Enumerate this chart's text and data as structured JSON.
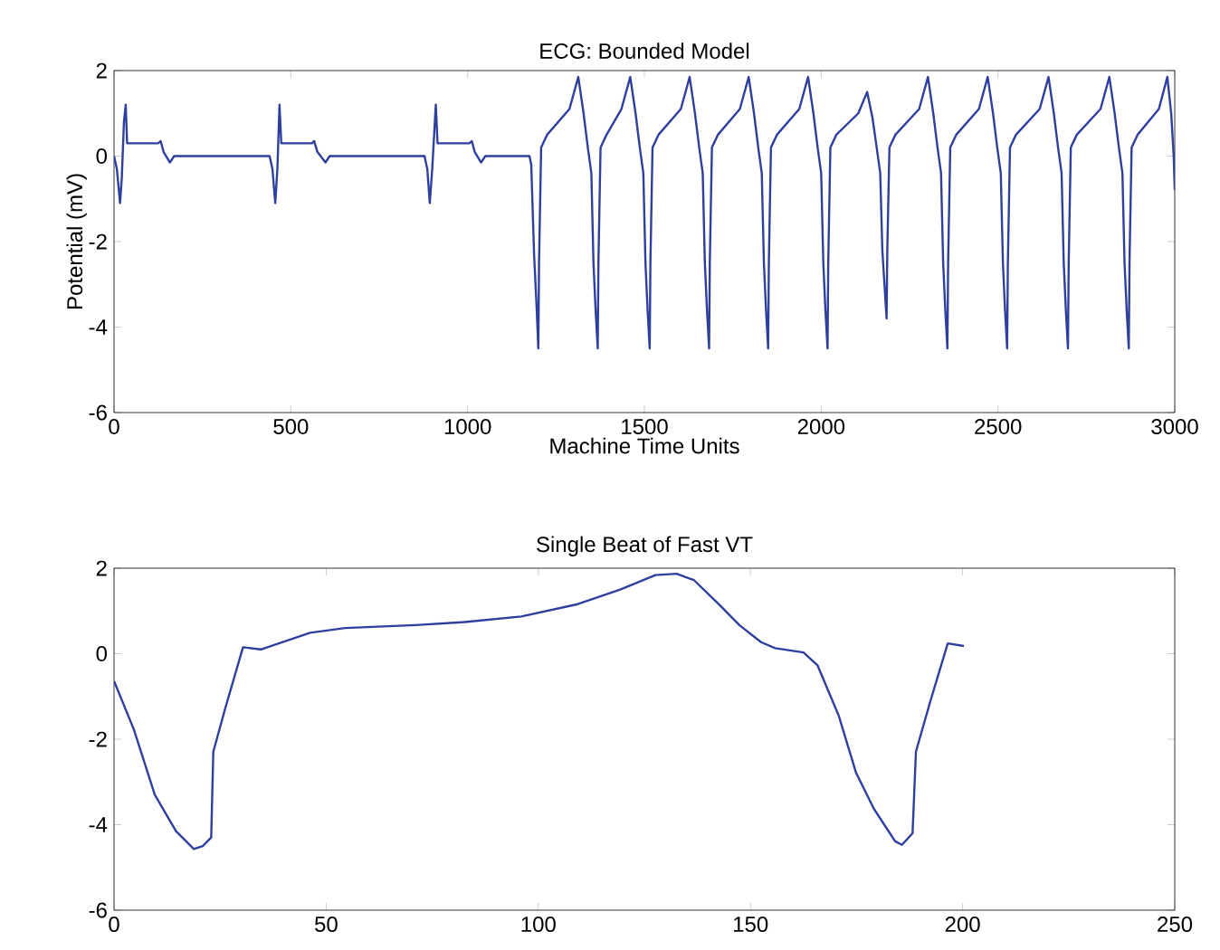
{
  "chart_data": [
    {
      "type": "line",
      "title": "ECG: Bounded Model",
      "xlabel": "Machine Time Units",
      "ylabel": "Potential (mV)",
      "xlim": [
        0,
        3000
      ],
      "ylim": [
        -6,
        2
      ],
      "xticks": [
        0,
        500,
        1000,
        1500,
        2000,
        2500,
        3000
      ],
      "yticks": [
        -6,
        -4,
        -2,
        0,
        2
      ],
      "color": "#2e3f9e",
      "x": [
        0,
        8,
        17,
        22,
        28,
        33,
        37,
        40,
        125,
        132,
        140,
        158,
        170,
        440,
        448,
        456,
        462,
        468,
        473,
        560,
        566,
        575,
        598,
        610,
        878,
        886,
        893,
        900,
        910,
        915,
        1005,
        1012,
        1020,
        1038,
        1050,
        1175,
        1180,
        1188,
        1195,
        1200,
        1202,
        1208,
        1225,
        1288,
        1313,
        1328,
        1340,
        1350,
        1356,
        1362,
        1368,
        1370,
        1376,
        1393,
        1435,
        1460,
        1475,
        1487,
        1497,
        1503,
        1509,
        1515,
        1517,
        1523,
        1540,
        1603,
        1628,
        1643,
        1655,
        1665,
        1671,
        1677,
        1683,
        1685,
        1691,
        1708,
        1770,
        1795,
        1810,
        1822,
        1832,
        1838,
        1844,
        1850,
        1852,
        1858,
        1875,
        1938,
        1963,
        1978,
        1990,
        2000,
        2006,
        2012,
        2018,
        2020,
        2026,
        2043,
        2105,
        2130,
        2145,
        2157,
        2167,
        2173,
        2179,
        2185,
        2187,
        2193,
        2210,
        2277,
        2302,
        2317,
        2329,
        2339,
        2345,
        2351,
        2357,
        2359,
        2365,
        2382,
        2446,
        2471,
        2486,
        2498,
        2508,
        2514,
        2520,
        2526,
        2528,
        2534,
        2551,
        2618,
        2643,
        2658,
        2670,
        2680,
        2686,
        2692,
        2698,
        2700,
        2706,
        2723,
        2790,
        2815,
        2830,
        2842,
        2852,
        2858,
        2864,
        2870,
        2872,
        2878,
        2895,
        2955,
        2979,
        2990,
        2997,
        3000
      ],
      "values": [
        0,
        -0.3,
        -1.1,
        -0.5,
        0.8,
        1.2,
        0.3,
        0.3,
        0.3,
        0.35,
        0.1,
        -0.15,
        0,
        0,
        -0.3,
        -1.1,
        -0.3,
        1.2,
        0.3,
        0.3,
        0.35,
        0.1,
        -0.15,
        0,
        0,
        -0.3,
        -1.1,
        -0.3,
        1.2,
        0.3,
        0.3,
        0.35,
        0.1,
        -0.15,
        0,
        0,
        -0.2,
        -2.3,
        -3.5,
        -4.5,
        -2.5,
        0.2,
        0.5,
        1.1,
        1.85,
        1.0,
        0.2,
        -0.4,
        -2.5,
        -3.6,
        -4.5,
        -2.5,
        0.2,
        0.5,
        1.1,
        1.85,
        1.0,
        0.2,
        -0.4,
        -2.5,
        -3.6,
        -4.5,
        -2.5,
        0.2,
        0.5,
        1.1,
        1.85,
        1.0,
        0.2,
        -0.4,
        -2.5,
        -3.6,
        -4.5,
        -2.5,
        0.2,
        0.5,
        1.1,
        1.85,
        1.0,
        0.2,
        -0.4,
        -2.5,
        -3.6,
        -4.5,
        -2.5,
        0.2,
        0.5,
        1.1,
        1.85,
        1.0,
        0.2,
        -0.4,
        -2.5,
        -3.6,
        -4.5,
        -2.5,
        0.2,
        0.5,
        1.0,
        1.5,
        0.9,
        0.2,
        -0.4,
        -2.2,
        -3.0,
        -3.8,
        -2.2,
        0.2,
        0.5,
        1.1,
        1.85,
        1.0,
        0.2,
        -0.4,
        -2.5,
        -3.6,
        -4.5,
        -2.5,
        0.2,
        0.5,
        1.1,
        1.85,
        1.0,
        0.2,
        -0.4,
        -2.5,
        -3.6,
        -4.5,
        -2.5,
        0.2,
        0.5,
        1.1,
        1.85,
        1.0,
        0.2,
        -0.4,
        -2.5,
        -3.6,
        -4.5,
        -2.5,
        0.2,
        0.5,
        1.1,
        1.85,
        1.0,
        0.2,
        -0.4,
        -2.5,
        -3.6,
        -4.5,
        -2.5,
        0.2,
        0.5,
        1.1,
        1.85,
        1.0,
        0,
        -0.8
      ]
    },
    {
      "type": "line",
      "title": "Single Beat of Fast VT",
      "xlim": [
        0,
        250
      ],
      "ylim": [
        -6,
        2
      ],
      "xticks": [
        0,
        50,
        100,
        150,
        200,
        250
      ],
      "yticks": [
        -6,
        -4,
        -2,
        0,
        2
      ],
      "color": "#2e3f9e",
      "x": [
        0,
        4.7,
        9.6,
        14.6,
        18.8,
        20.9,
        22.9,
        23.4,
        26.2,
        30.4,
        34.6,
        46.2,
        54.5,
        71.1,
        82.7,
        96,
        109.3,
        119.3,
        127.6,
        132.6,
        136.7,
        142.5,
        147.5,
        152.5,
        155.8,
        162.5,
        165.8,
        170.8,
        174.9,
        179.1,
        184.1,
        185.7,
        188.2,
        189,
        192.4,
        196.5,
        200.3
      ],
      "values": [
        -0.64,
        -1.78,
        -3.3,
        -4.15,
        -4.57,
        -4.5,
        -4.3,
        -2.29,
        -1.28,
        0.15,
        0.1,
        0.49,
        0.6,
        0.67,
        0.74,
        0.87,
        1.16,
        1.5,
        1.84,
        1.87,
        1.72,
        1.16,
        0.66,
        0.27,
        0.13,
        0.03,
        -0.27,
        -1.45,
        -2.79,
        -3.63,
        -4.39,
        -4.47,
        -4.2,
        -2.29,
        -1.11,
        0.24,
        0.18
      ]
    }
  ]
}
